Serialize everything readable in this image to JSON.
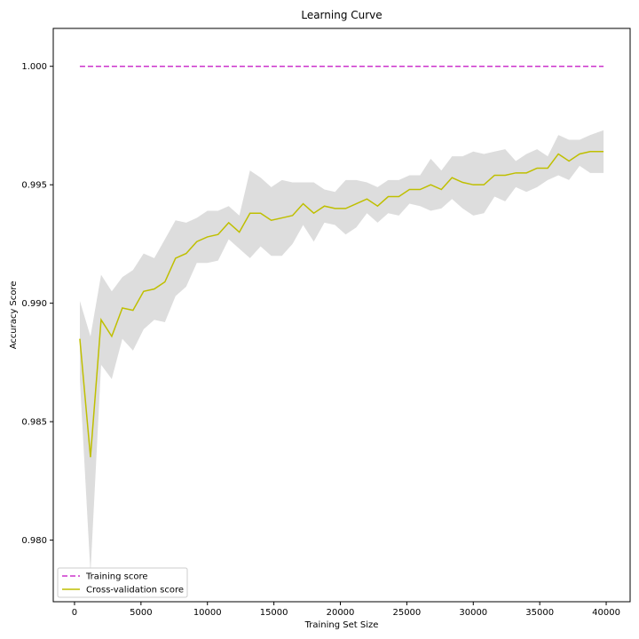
{
  "chart_data": {
    "type": "line",
    "title": "Learning Curve",
    "xlabel": "Training Set Size",
    "ylabel": "Accuracy Score",
    "xlim": [
      -1600,
      41800
    ],
    "ylim": [
      0.9774,
      1.0016
    ],
    "xticks": [
      0,
      5000,
      10000,
      15000,
      20000,
      25000,
      30000,
      35000,
      40000
    ],
    "xtick_labels": [
      "0",
      "5000",
      "10000",
      "15000",
      "20000",
      "25000",
      "30000",
      "35000",
      "40000"
    ],
    "yticks": [
      0.98,
      0.985,
      0.99,
      0.995,
      1.0
    ],
    "ytick_labels": [
      "0.980",
      "0.985",
      "0.990",
      "0.995",
      "1.000"
    ],
    "grid": false,
    "legend_position": "lower-left",
    "x": [
      400,
      1200,
      2000,
      2800,
      3600,
      4400,
      5200,
      6000,
      6800,
      7600,
      8400,
      9200,
      10000,
      10800,
      11600,
      12400,
      13200,
      14000,
      14800,
      15600,
      16400,
      17200,
      18000,
      18800,
      19600,
      20400,
      21200,
      22000,
      22800,
      23600,
      24400,
      25200,
      26000,
      26800,
      27600,
      28400,
      29200,
      30000,
      30800,
      31600,
      32400,
      33200,
      34000,
      34800,
      35600,
      36400,
      37200,
      38000,
      38800,
      39800
    ],
    "series": [
      {
        "name": "Training score",
        "color": "#cc33cc",
        "style": "dashed",
        "values": [
          1.0,
          1.0,
          1.0,
          1.0,
          1.0,
          1.0,
          1.0,
          1.0,
          1.0,
          1.0,
          1.0,
          1.0,
          1.0,
          1.0,
          1.0,
          1.0,
          1.0,
          1.0,
          1.0,
          1.0,
          1.0,
          1.0,
          1.0,
          1.0,
          1.0,
          1.0,
          1.0,
          1.0,
          1.0,
          1.0,
          1.0,
          1.0,
          1.0,
          1.0,
          1.0,
          1.0,
          1.0,
          1.0,
          1.0,
          1.0,
          1.0,
          1.0,
          1.0,
          1.0,
          1.0,
          1.0,
          1.0,
          1.0,
          1.0,
          1.0
        ]
      },
      {
        "name": "Cross-validation score",
        "color": "#bfbf00",
        "style": "solid",
        "values": [
          0.9885,
          0.9835,
          0.9893,
          0.9886,
          0.9898,
          0.9897,
          0.9905,
          0.9906,
          0.9909,
          0.9919,
          0.9921,
          0.9926,
          0.9928,
          0.9929,
          0.9934,
          0.993,
          0.9938,
          0.9938,
          0.9935,
          0.9936,
          0.9937,
          0.9942,
          0.9938,
          0.9941,
          0.994,
          0.994,
          0.9942,
          0.9944,
          0.9941,
          0.9945,
          0.9945,
          0.9948,
          0.9948,
          0.995,
          0.9948,
          0.9953,
          0.9951,
          0.995,
          0.995,
          0.9954,
          0.9954,
          0.9955,
          0.9955,
          0.9957,
          0.9957,
          0.9963,
          0.996,
          0.9963,
          0.9964,
          0.9964
        ],
        "band_upper": [
          0.9901,
          0.9886,
          0.9912,
          0.9905,
          0.9911,
          0.9914,
          0.9921,
          0.9919,
          0.9927,
          0.9935,
          0.9934,
          0.9936,
          0.9939,
          0.9939,
          0.9941,
          0.9937,
          0.9956,
          0.9953,
          0.9949,
          0.9952,
          0.9951,
          0.9951,
          0.9951,
          0.9948,
          0.9947,
          0.9952,
          0.9952,
          0.9951,
          0.9949,
          0.9952,
          0.9952,
          0.9954,
          0.9954,
          0.9961,
          0.9956,
          0.9962,
          0.9962,
          0.9964,
          0.9963,
          0.9964,
          0.9965,
          0.996,
          0.9963,
          0.9965,
          0.9962,
          0.9971,
          0.9969,
          0.9969,
          0.9971,
          0.9973
        ],
        "band_lower": [
          0.9868,
          0.9786,
          0.9874,
          0.9868,
          0.9885,
          0.988,
          0.9889,
          0.9893,
          0.9892,
          0.9903,
          0.9907,
          0.9917,
          0.9917,
          0.9918,
          0.9927,
          0.9923,
          0.9919,
          0.9924,
          0.992,
          0.992,
          0.9925,
          0.9933,
          0.9926,
          0.9934,
          0.9933,
          0.9929,
          0.9932,
          0.9938,
          0.9934,
          0.9938,
          0.9937,
          0.9942,
          0.9941,
          0.9939,
          0.994,
          0.9944,
          0.994,
          0.9937,
          0.9938,
          0.9945,
          0.9943,
          0.9949,
          0.9947,
          0.9949,
          0.9952,
          0.9954,
          0.9952,
          0.9958,
          0.9955,
          0.9955
        ]
      }
    ]
  }
}
